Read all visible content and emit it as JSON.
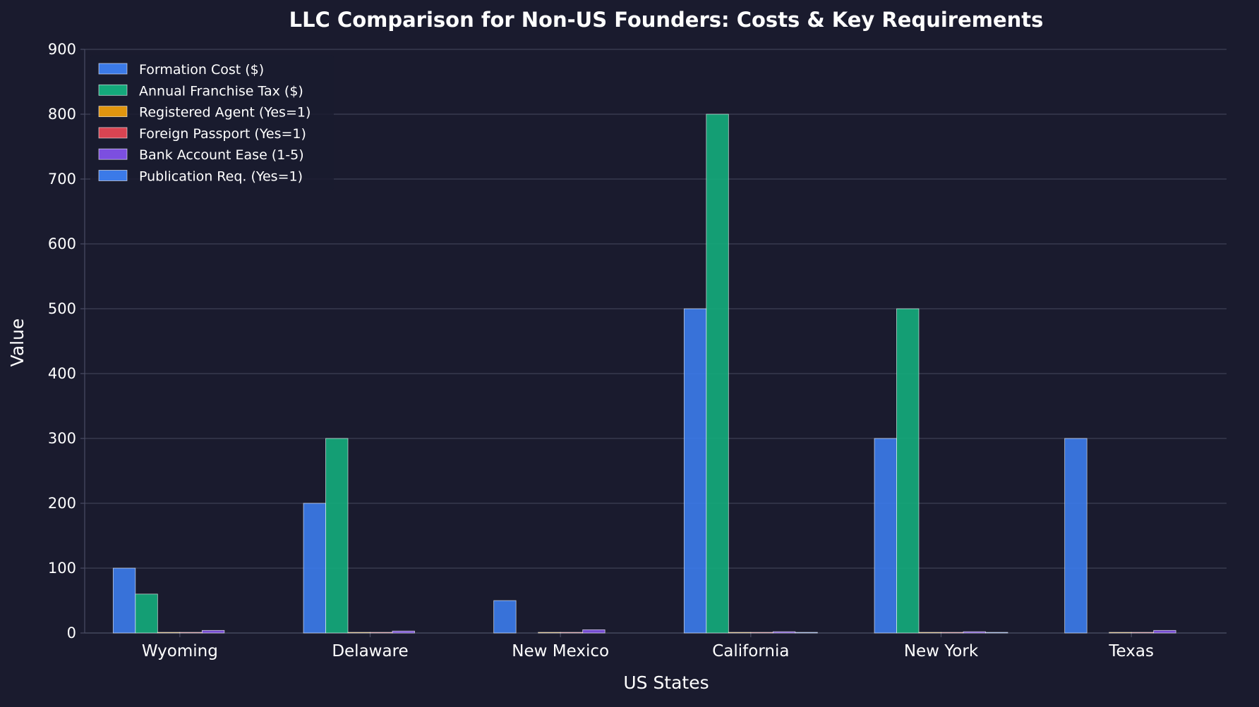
{
  "chart_data": {
    "type": "bar",
    "title": "LLC Comparison for Non-US Founders: Costs & Key Requirements",
    "xlabel": "US States",
    "ylabel": "Value",
    "ylim": [
      0,
      900
    ],
    "yticks": [
      0,
      100,
      200,
      300,
      400,
      500,
      600,
      700,
      800,
      900
    ],
    "grid": true,
    "legend_position": "top-left",
    "categories": [
      "Wyoming",
      "Delaware",
      "New Mexico",
      "California",
      "New York",
      "Texas"
    ],
    "series": [
      {
        "name": "Formation Cost ($)",
        "color": "#3b7ae8",
        "values": [
          100,
          200,
          50,
          500,
          300,
          300
        ]
      },
      {
        "name": "Annual Franchise Tax ($)",
        "color": "#14a97b",
        "values": [
          60,
          300,
          0,
          800,
          500,
          0
        ]
      },
      {
        "name": "Registered Agent (Yes=1)",
        "color": "#e0950f",
        "values": [
          1,
          1,
          1,
          1,
          1,
          1
        ]
      },
      {
        "name": "Foreign Passport (Yes=1)",
        "color": "#d94452",
        "values": [
          1,
          1,
          1,
          1,
          1,
          1
        ]
      },
      {
        "name": "Bank Account Ease (1-5)",
        "color": "#7c4fe0",
        "values": [
          4,
          3,
          5,
          2,
          2,
          4
        ]
      },
      {
        "name": "Publication Req. (Yes=1)",
        "color": "#3b7ae8",
        "values": [
          0,
          0,
          0,
          1,
          1,
          0
        ]
      }
    ]
  },
  "colors": {
    "background": "#1a1b2e",
    "text": "#ffffff",
    "grid": "#3e4056",
    "axis": "#4a4c63"
  }
}
